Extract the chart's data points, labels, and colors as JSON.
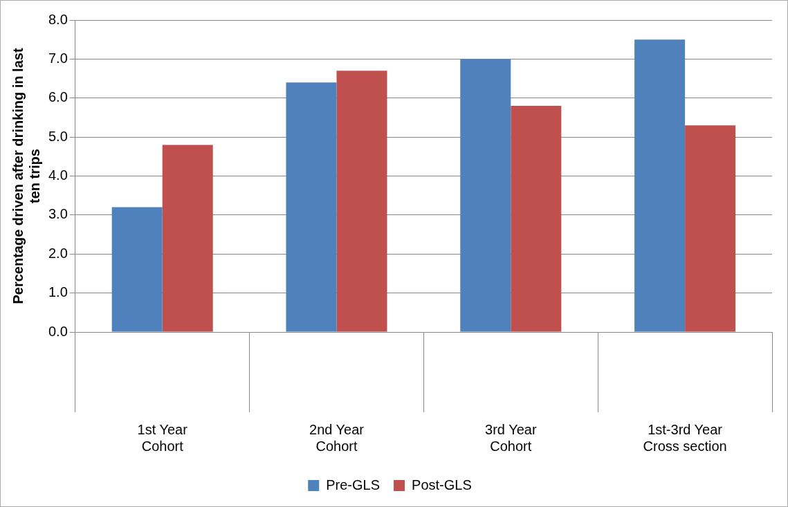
{
  "chart_data": {
    "type": "bar",
    "ylabel": "Percentage driven after drinking in last ten trips",
    "categories": [
      "1st Year\nCohort",
      "2nd Year\nCohort",
      "3rd Year\nCohort",
      "1st-3rd Year\nCross section"
    ],
    "series": [
      {
        "name": "Pre-GLS",
        "color": "#4f81bd",
        "values": [
          3.2,
          6.4,
          7.0,
          7.5
        ]
      },
      {
        "name": "Post-GLS",
        "color": "#c0504d",
        "values": [
          4.8,
          6.7,
          5.8,
          5.3
        ]
      }
    ],
    "ylim": [
      0,
      8
    ],
    "yticks": [
      {
        "value": 0,
        "label": "0.0"
      },
      {
        "value": 1,
        "label": "1.0"
      },
      {
        "value": 2,
        "label": "2.0"
      },
      {
        "value": 3,
        "label": "3.0"
      },
      {
        "value": 4,
        "label": "4.0"
      },
      {
        "value": 5,
        "label": "5.0"
      },
      {
        "value": 6,
        "label": "6.0"
      },
      {
        "value": 7,
        "label": "7.0"
      },
      {
        "value": 8,
        "label": "8.0"
      }
    ],
    "grid": "y",
    "legend": "bottom"
  }
}
